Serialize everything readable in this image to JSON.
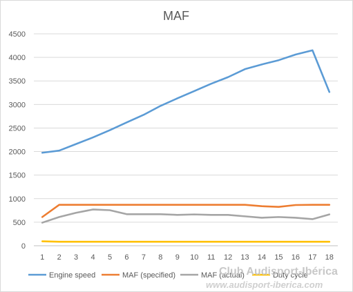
{
  "chart_data": {
    "type": "line",
    "title": "MAF",
    "xlabel": "",
    "ylabel": "",
    "x": [
      1,
      2,
      3,
      4,
      5,
      6,
      7,
      8,
      9,
      10,
      11,
      12,
      13,
      14,
      15,
      16,
      17,
      18
    ],
    "ylim": [
      0,
      4500
    ],
    "yticks": [
      0,
      500,
      1000,
      1500,
      2000,
      2500,
      3000,
      3500,
      4000,
      4500
    ],
    "grid": "horizontal",
    "legend_position": "bottom",
    "series": [
      {
        "name": "Engine speed",
        "color": "#5b9bd5",
        "values": [
          1975,
          2020,
          2160,
          2300,
          2455,
          2620,
          2780,
          2970,
          3130,
          3285,
          3440,
          3580,
          3750,
          3850,
          3940,
          4060,
          4150,
          3265
        ]
      },
      {
        "name": "MAF (specified)",
        "color": "#ed7d31",
        "values": [
          610,
          870,
          870,
          870,
          870,
          870,
          870,
          870,
          870,
          870,
          870,
          870,
          870,
          840,
          825,
          865,
          870,
          870
        ]
      },
      {
        "name": "MAF (actual)",
        "color": "#a5a5a5",
        "values": [
          490,
          610,
          700,
          770,
          755,
          670,
          670,
          670,
          655,
          665,
          655,
          655,
          625,
          595,
          610,
          595,
          565,
          665
        ]
      },
      {
        "name": "Duty cycle",
        "color": "#ffc000",
        "values": [
          95,
          85,
          85,
          85,
          85,
          85,
          85,
          85,
          85,
          85,
          85,
          85,
          85,
          85,
          85,
          85,
          85,
          85
        ]
      }
    ]
  },
  "watermark": {
    "line1": "Club Audisport-Ibérica",
    "line2": "www.audisport-iberica.com"
  }
}
